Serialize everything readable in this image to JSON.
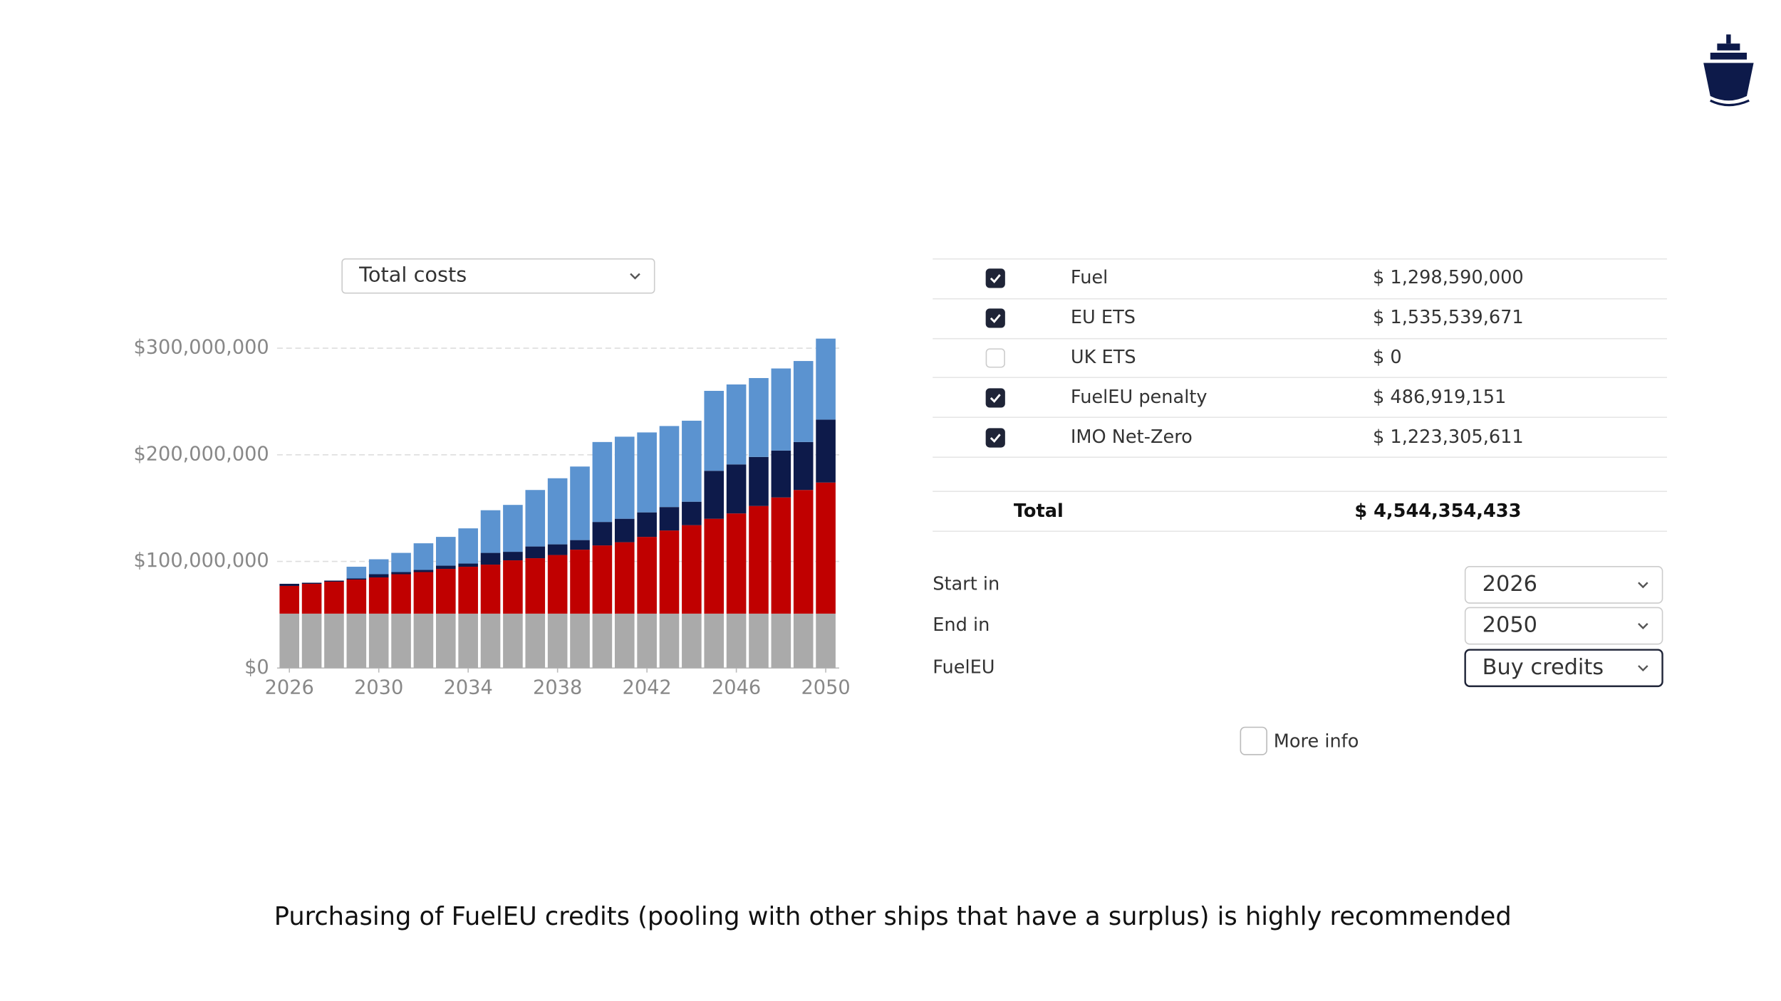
{
  "chart_data": {
    "type": "bar",
    "stacked": true,
    "x": [
      2026,
      2027,
      2028,
      2029,
      2030,
      2031,
      2032,
      2033,
      2034,
      2035,
      2036,
      2037,
      2038,
      2039,
      2040,
      2041,
      2042,
      2043,
      2044,
      2045,
      2046,
      2047,
      2048,
      2049,
      2050
    ],
    "xlim": [
      2025.5,
      2050.5
    ],
    "xticks": [
      2026,
      2030,
      2034,
      2038,
      2042,
      2046,
      2050
    ],
    "ylim": [
      0,
      310000000
    ],
    "yticks": [
      {
        "value": 0,
        "label": "$0"
      },
      {
        "value": 100000000,
        "label": "$100,000,000"
      },
      {
        "value": 200000000,
        "label": "$200,000,000"
      },
      {
        "value": 300000000,
        "label": "$300,000,000"
      }
    ],
    "grid": true,
    "series": [
      {
        "color": "#aaaaaa",
        "values": [
          51000000,
          51000000,
          51000000,
          51000000,
          51000000,
          51000000,
          51000000,
          51000000,
          51000000,
          51000000,
          51000000,
          51000000,
          51000000,
          51000000,
          51000000,
          51000000,
          51000000,
          51000000,
          51000000,
          51000000,
          51000000,
          51000000,
          51000000,
          51000000,
          51000000
        ]
      },
      {
        "color": "#c00000",
        "values": [
          26000000,
          28000000,
          30000000,
          32000000,
          34000000,
          37000000,
          39000000,
          42000000,
          44000000,
          46000000,
          50000000,
          52000000,
          55000000,
          60000000,
          64000000,
          67000000,
          72000000,
          78000000,
          83000000,
          89000000,
          94000000,
          101000000,
          109000000,
          116000000,
          123000000
        ]
      },
      {
        "color": "#0d1a4a",
        "values": [
          2000000,
          1000000,
          1000000,
          1000000,
          3000000,
          2000000,
          2000000,
          3000000,
          3000000,
          11000000,
          8000000,
          11000000,
          10000000,
          9000000,
          22000000,
          22000000,
          23000000,
          22000000,
          22000000,
          45000000,
          46000000,
          46000000,
          44000000,
          45000000,
          59000000
        ]
      },
      {
        "color": "#5b93d0",
        "values": [
          0,
          0,
          0,
          11000000,
          14000000,
          18000000,
          25000000,
          27000000,
          33000000,
          40000000,
          44000000,
          53000000,
          62000000,
          69000000,
          75000000,
          77000000,
          75000000,
          76000000,
          76000000,
          75000000,
          75000000,
          74000000,
          77000000,
          76000000,
          76000000
        ]
      }
    ]
  },
  "metric_select": "Total costs",
  "cost_table": {
    "rows": [
      {
        "checked": true,
        "label": "Fuel",
        "value": "$ 1,298,590,000"
      },
      {
        "checked": true,
        "label": "EU ETS",
        "value": "$ 1,535,539,671"
      },
      {
        "checked": false,
        "label": "UK ETS",
        "value": "$ 0"
      },
      {
        "checked": true,
        "label": "FuelEU penalty",
        "value": "$ 486,919,151"
      },
      {
        "checked": true,
        "label": "IMO Net-Zero",
        "value": "$ 1,223,305,611"
      }
    ],
    "total_label": "Total",
    "total_value": "$ 4,544,354,433"
  },
  "settings": [
    {
      "label": "Start in",
      "value": "2026"
    },
    {
      "label": "End in",
      "value": "2050"
    },
    {
      "label": "FuelEU",
      "value": "Buy credits"
    }
  ],
  "more_info": "More info",
  "caption": "Purchasing of FuelEU credits (pooling with other ships that have a surplus) is highly recommended"
}
